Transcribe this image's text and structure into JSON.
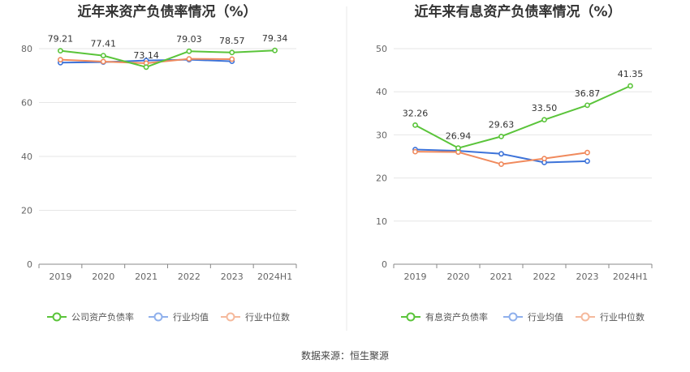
{
  "colors": {
    "company": "#5ac43a",
    "industry_avg": "#3d73d9",
    "industry_median": "#f08a5d",
    "legend_avg": "#8fb0ec",
    "legend_median": "#f5b99c",
    "grid": "#e6e6e6",
    "axis": "#888888"
  },
  "chart_data": [
    {
      "type": "line",
      "title": "近年来资产负债率情况（%）",
      "categories": [
        "2019",
        "2020",
        "2021",
        "2022",
        "2023",
        "2024H1"
      ],
      "ylim": [
        0,
        90
      ],
      "yticks": [
        0,
        20,
        40,
        60,
        80
      ],
      "series": [
        {
          "name": "公司资产负债率",
          "key": "company",
          "values": [
            79.21,
            77.41,
            73.14,
            79.03,
            78.57,
            79.34
          ],
          "labels": [
            "79.21",
            "77.41",
            "73.14",
            "79.03",
            "78.57",
            "79.34"
          ]
        },
        {
          "name": "行业均值",
          "key": "industry_avg",
          "values": [
            74.8,
            75.0,
            75.6,
            75.9,
            75.3,
            null
          ]
        },
        {
          "name": "行业中位数",
          "key": "industry_median",
          "values": [
            75.9,
            75.2,
            74.6,
            76.2,
            76.1,
            null
          ]
        }
      ],
      "legend_position": "bottom"
    },
    {
      "type": "line",
      "title": "近年来有息资产负债率情况（%）",
      "categories": [
        "2019",
        "2020",
        "2021",
        "2022",
        "2023",
        "2024H1"
      ],
      "ylim": [
        0,
        50
      ],
      "yticks": [
        0,
        10,
        20,
        30,
        40,
        50
      ],
      "series": [
        {
          "name": "有息资产负债率",
          "key": "company",
          "values": [
            32.26,
            26.94,
            29.63,
            33.5,
            36.87,
            41.35
          ],
          "labels": [
            "32.26",
            "26.94",
            "29.63",
            "33.50",
            "36.87",
            "41.35"
          ]
        },
        {
          "name": "行业均值",
          "key": "industry_avg",
          "values": [
            26.6,
            26.3,
            25.6,
            23.6,
            23.9,
            null
          ]
        },
        {
          "name": "行业中位数",
          "key": "industry_median",
          "values": [
            26.1,
            26.0,
            23.2,
            24.5,
            25.9,
            null
          ]
        }
      ],
      "legend_position": "bottom"
    }
  ],
  "source_text": "数据来源：恒生聚源"
}
